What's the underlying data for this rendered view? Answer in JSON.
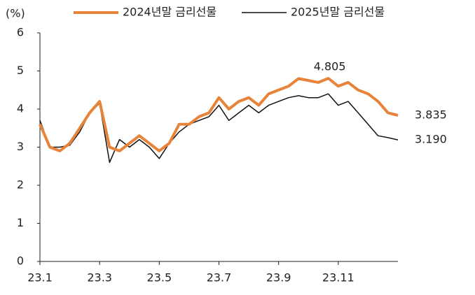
{
  "chart_data": {
    "type": "line",
    "y_label": "(%)",
    "categories": [
      "23.1",
      null,
      null,
      null,
      null,
      null,
      "23.3",
      null,
      null,
      null,
      null,
      null,
      "23.5",
      null,
      null,
      null,
      null,
      null,
      "23.7",
      null,
      null,
      null,
      null,
      null,
      "23.9",
      null,
      null,
      null,
      null,
      null,
      "23.11",
      null,
      null,
      null,
      null,
      null,
      null
    ],
    "series": [
      {
        "name": "2024년말 금리선물",
        "color": "#e8833a",
        "width": 4,
        "values": [
          3.6,
          3.0,
          2.9,
          3.1,
          3.5,
          3.9,
          4.2,
          3.0,
          2.9,
          3.1,
          3.3,
          3.1,
          2.9,
          3.1,
          3.6,
          3.6,
          3.8,
          3.9,
          4.3,
          4.0,
          4.2,
          4.3,
          4.1,
          4.4,
          4.5,
          4.6,
          4.8,
          4.75,
          4.7,
          4.805,
          4.6,
          4.7,
          4.5,
          4.4,
          4.2,
          3.9,
          3.835
        ],
        "value_labels": [
          null,
          null,
          null,
          null,
          null,
          null,
          null,
          null,
          null,
          null,
          null,
          null,
          null,
          null,
          null,
          null,
          null,
          null,
          null,
          null,
          null,
          null,
          null,
          null,
          null,
          null,
          null,
          null,
          null,
          "4.805",
          null,
          null,
          null,
          null,
          null,
          null,
          "3.835"
        ]
      },
      {
        "name": "2025년말 금리선물",
        "color": "#111111",
        "width": 1.5,
        "values": [
          3.7,
          3.0,
          3.0,
          3.05,
          3.4,
          3.9,
          4.15,
          2.6,
          3.2,
          3.0,
          3.2,
          3.0,
          2.7,
          3.1,
          3.4,
          3.6,
          3.7,
          3.8,
          4.1,
          3.7,
          3.9,
          4.1,
          3.9,
          4.1,
          4.2,
          4.3,
          4.35,
          4.3,
          4.3,
          4.4,
          4.1,
          4.2,
          3.9,
          3.6,
          3.3,
          3.25,
          3.19
        ],
        "value_labels": [
          null,
          null,
          null,
          null,
          null,
          null,
          null,
          null,
          null,
          null,
          null,
          null,
          null,
          null,
          null,
          null,
          null,
          null,
          null,
          null,
          null,
          null,
          null,
          null,
          null,
          null,
          null,
          null,
          null,
          null,
          null,
          null,
          null,
          null,
          null,
          null,
          "3.190"
        ]
      }
    ],
    "ylim": [
      0,
      6
    ],
    "yticks": [
      0,
      1,
      2,
      3,
      4,
      5,
      6
    ],
    "grid": false
  }
}
